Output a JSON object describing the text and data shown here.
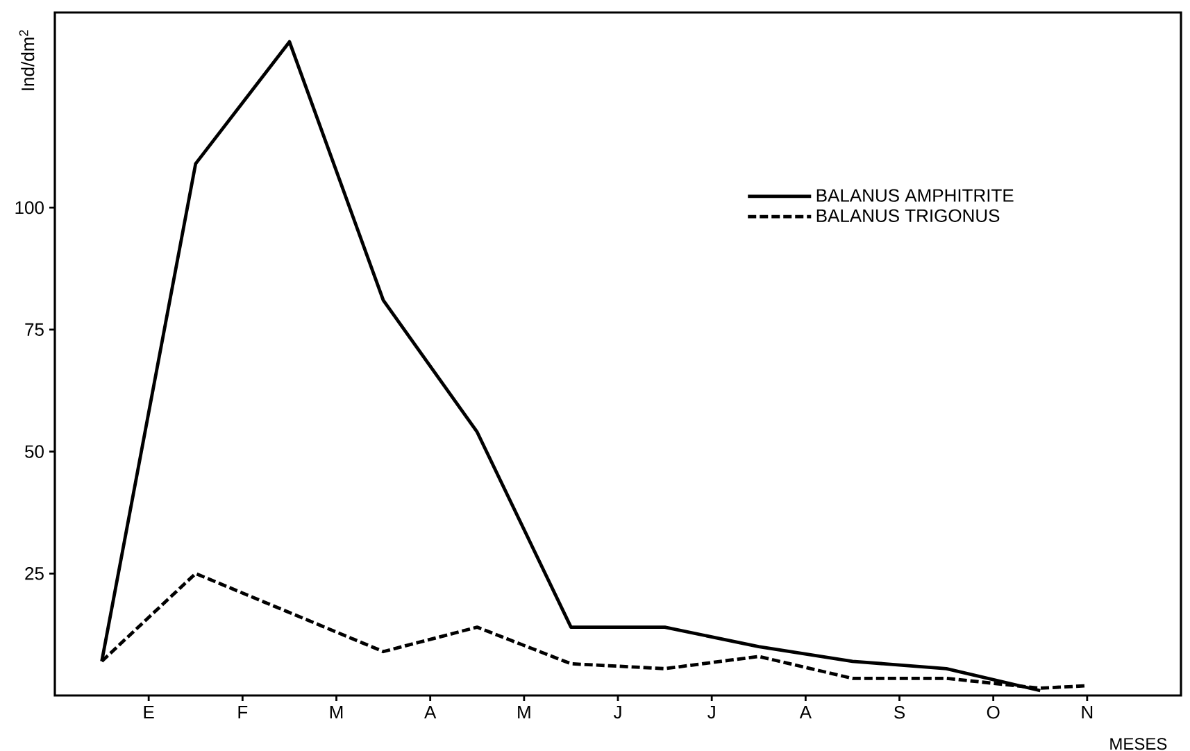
{
  "chart_data": {
    "type": "line",
    "xlabel": "MESES",
    "ylabel": "Ind/dm$^{2}$",
    "categories": [
      null,
      "E",
      null,
      "F",
      null,
      "M",
      null,
      "A",
      null,
      "M",
      null,
      "J",
      null,
      "J",
      null,
      "A",
      null,
      "S",
      null,
      "O",
      null,
      "N"
    ],
    "ylim": [
      0,
      140
    ],
    "yticks": [
      25,
      50,
      75,
      100
    ],
    "legend": "top right",
    "grid": false,
    "series": [
      {
        "name": "BALANUS  AMPHITRITE",
        "color": "#000000",
        "line_style": "solid",
        "values": [
          7,
          null,
          109,
          null,
          134,
          null,
          81,
          null,
          54,
          null,
          14,
          null,
          14,
          null,
          10,
          null,
          7,
          null,
          5.5,
          null,
          1,
          null
        ]
      },
      {
        "name": "BALANUS  TRIGONUS",
        "color": "#000000",
        "line_style": "dashed",
        "values": [
          7,
          null,
          25,
          null,
          17,
          null,
          9,
          null,
          14,
          null,
          6.5,
          null,
          5.5,
          null,
          8,
          null,
          3.5,
          null,
          3.5,
          null,
          1.5,
          2
        ]
      }
    ]
  }
}
